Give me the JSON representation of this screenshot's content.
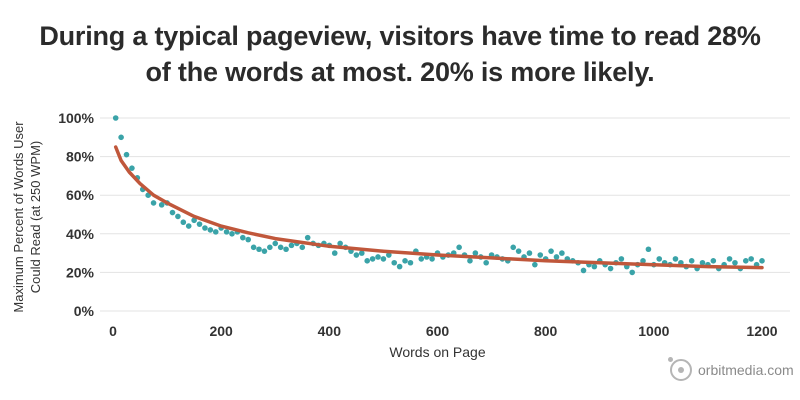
{
  "title": {
    "line1": "During a typical pageview, visitors have time to read 28%",
    "line2": "of the words at most. 20% is more likely."
  },
  "brand": {
    "text": "orbitmedia.com",
    "icon": "orbit-logo-icon"
  },
  "colors": {
    "points": "#3aa3a8",
    "trend": "#c0573b",
    "grid": "#e3e3e3",
    "text": "#333333"
  },
  "chart_data": {
    "type": "scatter",
    "xlabel": "Words on Page",
    "ylabel_lines": [
      "Maximum Percent of Words User",
      "Could Read (at 250 WPM)"
    ],
    "xlim": [
      0,
      1200
    ],
    "ylim": [
      0,
      100
    ],
    "x_ticks": [
      {
        "value": 0,
        "label": "0"
      },
      {
        "value": 200,
        "label": "200"
      },
      {
        "value": 400,
        "label": "400"
      },
      {
        "value": 600,
        "label": "600"
      },
      {
        "value": 800,
        "label": "800"
      },
      {
        "value": 1000,
        "label": "1000"
      },
      {
        "value": 1200,
        "label": "1200"
      }
    ],
    "y_ticks": [
      {
        "value": 0,
        "label": "0%"
      },
      {
        "value": 20,
        "label": "20%"
      },
      {
        "value": 40,
        "label": "40%"
      },
      {
        "value": 60,
        "label": "60%"
      },
      {
        "value": 80,
        "label": "80%"
      },
      {
        "value": 100,
        "label": "100%"
      }
    ],
    "grid": true,
    "points": [
      [
        5,
        100
      ],
      [
        15,
        90
      ],
      [
        25,
        81
      ],
      [
        35,
        74
      ],
      [
        45,
        69
      ],
      [
        55,
        63
      ],
      [
        65,
        60
      ],
      [
        75,
        56
      ],
      [
        90,
        55
      ],
      [
        100,
        56
      ],
      [
        110,
        51
      ],
      [
        120,
        49
      ],
      [
        130,
        46
      ],
      [
        140,
        44
      ],
      [
        150,
        47
      ],
      [
        160,
        45
      ],
      [
        170,
        43
      ],
      [
        180,
        42
      ],
      [
        190,
        41
      ],
      [
        200,
        43
      ],
      [
        210,
        41
      ],
      [
        220,
        40
      ],
      [
        230,
        41
      ],
      [
        240,
        38
      ],
      [
        250,
        37
      ],
      [
        260,
        33
      ],
      [
        270,
        32
      ],
      [
        280,
        31
      ],
      [
        290,
        33
      ],
      [
        300,
        35
      ],
      [
        310,
        33
      ],
      [
        320,
        32
      ],
      [
        330,
        34
      ],
      [
        340,
        35
      ],
      [
        350,
        33
      ],
      [
        360,
        38
      ],
      [
        370,
        35
      ],
      [
        380,
        34
      ],
      [
        390,
        35
      ],
      [
        400,
        34
      ],
      [
        410,
        30
      ],
      [
        420,
        35
      ],
      [
        430,
        33
      ],
      [
        440,
        31
      ],
      [
        450,
        29
      ],
      [
        460,
        30
      ],
      [
        470,
        26
      ],
      [
        480,
        27
      ],
      [
        490,
        28
      ],
      [
        500,
        27
      ],
      [
        510,
        29
      ],
      [
        520,
        25
      ],
      [
        530,
        23
      ],
      [
        540,
        26
      ],
      [
        550,
        25
      ],
      [
        560,
        31
      ],
      [
        570,
        27
      ],
      [
        580,
        28
      ],
      [
        590,
        27
      ],
      [
        600,
        30
      ],
      [
        610,
        28
      ],
      [
        620,
        29
      ],
      [
        630,
        30
      ],
      [
        640,
        33
      ],
      [
        650,
        29
      ],
      [
        660,
        26
      ],
      [
        670,
        30
      ],
      [
        680,
        28
      ],
      [
        690,
        25
      ],
      [
        700,
        29
      ],
      [
        710,
        28
      ],
      [
        720,
        27
      ],
      [
        730,
        26
      ],
      [
        740,
        33
      ],
      [
        750,
        31
      ],
      [
        760,
        28
      ],
      [
        770,
        30
      ],
      [
        780,
        24
      ],
      [
        790,
        29
      ],
      [
        800,
        27
      ],
      [
        810,
        31
      ],
      [
        820,
        28
      ],
      [
        830,
        30
      ],
      [
        840,
        27
      ],
      [
        850,
        26
      ],
      [
        860,
        25
      ],
      [
        870,
        21
      ],
      [
        880,
        24
      ],
      [
        890,
        23
      ],
      [
        900,
        26
      ],
      [
        910,
        24
      ],
      [
        920,
        22
      ],
      [
        930,
        25
      ],
      [
        940,
        27
      ],
      [
        950,
        23
      ],
      [
        960,
        20
      ],
      [
        970,
        24
      ],
      [
        980,
        26
      ],
      [
        990,
        32
      ],
      [
        1000,
        24
      ],
      [
        1010,
        27
      ],
      [
        1020,
        25
      ],
      [
        1030,
        24
      ],
      [
        1040,
        27
      ],
      [
        1050,
        25
      ],
      [
        1060,
        23
      ],
      [
        1070,
        26
      ],
      [
        1080,
        22
      ],
      [
        1090,
        25
      ],
      [
        1100,
        24
      ],
      [
        1110,
        26
      ],
      [
        1120,
        22
      ],
      [
        1130,
        24
      ],
      [
        1140,
        27
      ],
      [
        1150,
        25
      ],
      [
        1160,
        22
      ],
      [
        1170,
        26
      ],
      [
        1180,
        27
      ],
      [
        1190,
        24
      ],
      [
        1200,
        26
      ]
    ],
    "trendline": {
      "points": [
        [
          5,
          85
        ],
        [
          15,
          78
        ],
        [
          30,
          72
        ],
        [
          50,
          66
        ],
        [
          75,
          60
        ],
        [
          100,
          56
        ],
        [
          150,
          49
        ],
        [
          200,
          44
        ],
        [
          250,
          40.5
        ],
        [
          300,
          37.5
        ],
        [
          400,
          33.5
        ],
        [
          500,
          31
        ],
        [
          600,
          29
        ],
        [
          700,
          27.5
        ],
        [
          800,
          26
        ],
        [
          900,
          25
        ],
        [
          1000,
          24
        ],
        [
          1100,
          23
        ],
        [
          1200,
          22.5
        ]
      ]
    }
  }
}
